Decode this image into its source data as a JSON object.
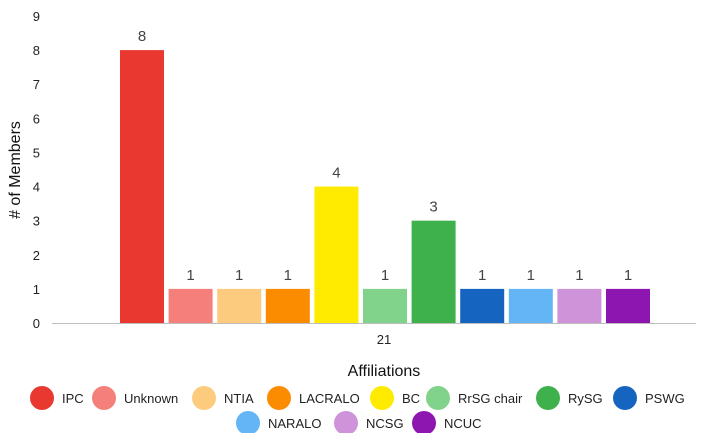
{
  "chart_data": {
    "type": "bar",
    "categories": [
      "21"
    ],
    "series": [
      {
        "name": "IPC",
        "values": [
          8
        ],
        "color": "#e8382f"
      },
      {
        "name": "Unknown",
        "values": [
          1
        ],
        "color": "#f47f7b"
      },
      {
        "name": "NTIA",
        "values": [
          1
        ],
        "color": "#fdcb7e"
      },
      {
        "name": "LACRALO",
        "values": [
          1
        ],
        "color": "#fb8c00"
      },
      {
        "name": "BC",
        "values": [
          4
        ],
        "color": "#ffeb00"
      },
      {
        "name": "RrSG chair",
        "values": [
          1
        ],
        "color": "#81d28a"
      },
      {
        "name": "RySG",
        "values": [
          3
        ],
        "color": "#3eb04c"
      },
      {
        "name": "PSWG",
        "values": [
          1
        ],
        "color": "#1565c0"
      },
      {
        "name": "NARALO",
        "values": [
          1
        ],
        "color": "#64b5f6"
      },
      {
        "name": "NCSG",
        "values": [
          1
        ],
        "color": "#ce93d8"
      },
      {
        "name": "NCUC",
        "values": [
          1
        ],
        "color": "#8e16b0"
      }
    ],
    "title": "",
    "xlabel": "Affiliations",
    "ylabel": "# of Members",
    "ylim": [
      0,
      9
    ],
    "yticks": [
      0,
      1,
      2,
      3,
      4,
      5,
      6,
      7,
      8,
      9
    ],
    "grid": false,
    "data_labels": true,
    "legend_position": "bottom"
  }
}
